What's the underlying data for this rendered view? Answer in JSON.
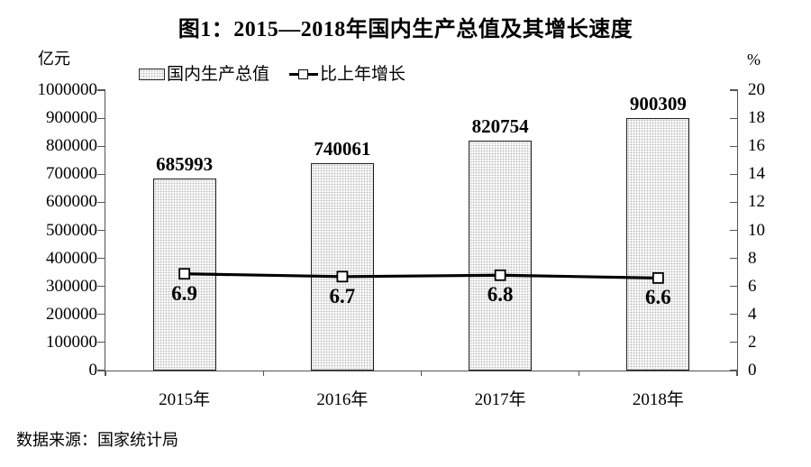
{
  "title": "图1：2015—2018年国内生产总值及其增长速度",
  "legend": {
    "bar_label": "国内生产总值",
    "line_label": "比上年增长"
  },
  "axes": {
    "left_unit": "亿元",
    "right_unit": "%"
  },
  "source_note": "数据来源：国家统计局",
  "colors": {
    "text": "#000000",
    "axis": "#555555",
    "bar_border": "#222222",
    "bar_fill": "#fcfcfc",
    "bar_dot": "#c2c2c2",
    "line": "#000000",
    "marker_fill": "#ffffff"
  },
  "chart_data": {
    "type": "bar",
    "title": "图1：2015—2018年国内生产总值及其增长速度",
    "categories": [
      "2015年",
      "2016年",
      "2017年",
      "2018年"
    ],
    "series": [
      {
        "name": "国内生产总值",
        "type": "bar",
        "axis": "left",
        "unit": "亿元",
        "values": [
          685993,
          740061,
          820754,
          900309
        ]
      },
      {
        "name": "比上年增长",
        "type": "line",
        "axis": "right",
        "unit": "%",
        "values": [
          6.9,
          6.7,
          6.8,
          6.6
        ]
      }
    ],
    "left_axis": {
      "label": "亿元",
      "min": 0,
      "max": 1000000,
      "step": 100000
    },
    "right_axis": {
      "label": "%",
      "min": 0,
      "max": 20,
      "step": 2
    },
    "grid": false,
    "legend_position": "top-left"
  }
}
